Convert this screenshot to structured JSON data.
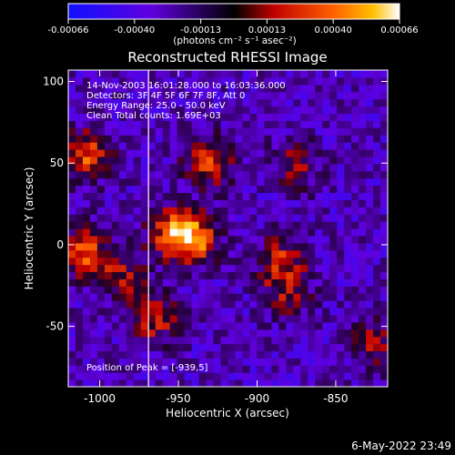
{
  "colorbar": {
    "ticks": [
      "-0.00066",
      "-0.00040",
      "-0.00013",
      "0.00013",
      "0.00040",
      "0.00066"
    ],
    "unit_label": "(photons cm⁻² s⁻¹ asec⁻²)"
  },
  "footer": {
    "timestamp": "6-May-2022 23:49"
  },
  "chart_data": {
    "type": "heatmap",
    "title": "Reconstructed RHESSI Image",
    "xlabel": "Heliocentric X (arcsec)",
    "ylabel": "Heliocentric Y (arcsec)",
    "xlim": [
      -1020,
      -817
    ],
    "ylim": [
      -87,
      107
    ],
    "x_ticks": [
      -1000,
      -950,
      -900,
      -850
    ],
    "y_ticks": [
      -50,
      0,
      50,
      100
    ],
    "x_tick_labels": [
      "-1000",
      "-950",
      "-900",
      "-850"
    ],
    "y_tick_labels": [
      "-50",
      "0",
      "50",
      "100"
    ],
    "color_range": [
      -0.00066,
      0.00066
    ],
    "colormap": [
      "#0000ff",
      "#ffffff"
    ],
    "limb_line_x": -969,
    "annotations": [
      "14-Nov-2003 16:01:28.000 to 16:03:36.000",
      "Detectors: 3F 4F 5F 6F 7F 8F, Att 0",
      "Energy Range: 25.0 - 50.0 keV",
      "Clean    Total counts: 1.69E+03"
    ],
    "peak_label": "Position of Peak = [-939,5]",
    "hotspots": [
      {
        "x": -940,
        "y": 4,
        "value": 0.00066
      },
      {
        "x": -955,
        "y": 8,
        "value": 0.00052
      },
      {
        "x": -930,
        "y": 52,
        "value": 0.00055
      },
      {
        "x": -1008,
        "y": 55,
        "value": 0.00058
      },
      {
        "x": -1010,
        "y": -5,
        "value": 0.00058
      },
      {
        "x": -965,
        "y": -45,
        "value": 0.00045
      },
      {
        "x": -985,
        "y": -20,
        "value": 0.0004
      },
      {
        "x": -885,
        "y": -10,
        "value": 0.00045
      },
      {
        "x": -875,
        "y": 50,
        "value": 0.00035
      },
      {
        "x": -880,
        "y": -30,
        "value": 0.00032
      },
      {
        "x": -825,
        "y": -60,
        "value": 0.00035
      }
    ]
  }
}
